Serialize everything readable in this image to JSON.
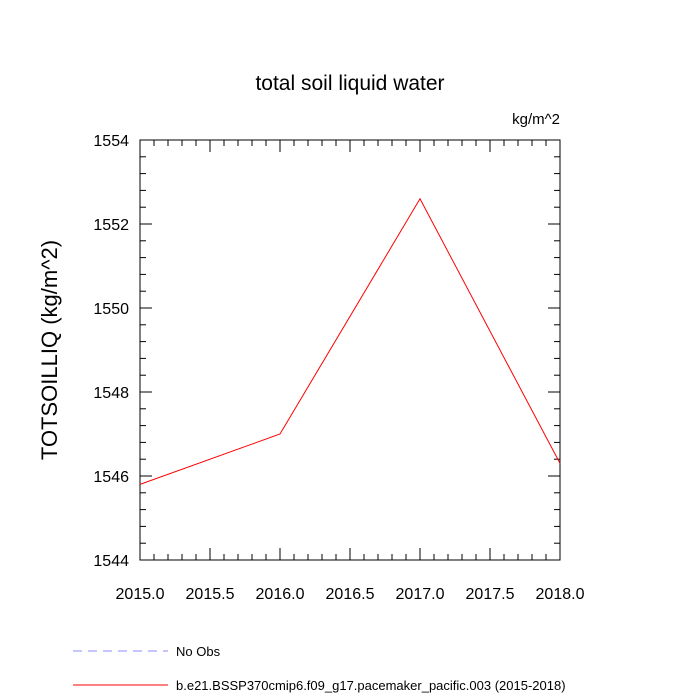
{
  "chart_data": {
    "type": "line",
    "title": "total soil liquid water",
    "units_label": "kg/m^2",
    "xlabel": "",
    "ylabel": "TOTSOILLIQ  (kg/m^2)",
    "xlim": [
      2015.0,
      2018.0
    ],
    "ylim": [
      1544,
      1554
    ],
    "x_ticks": [
      2015.0,
      2015.5,
      2016.0,
      2016.5,
      2017.0,
      2017.5,
      2018.0
    ],
    "x_tick_labels": [
      "2015.0",
      "2015.5",
      "2016.0",
      "2016.5",
      "2017.0",
      "2017.5",
      "2018.0"
    ],
    "y_ticks": [
      1544,
      1546,
      1548,
      1550,
      1552,
      1554
    ],
    "y_tick_labels": [
      "1544",
      "1546",
      "1548",
      "1550",
      "1552",
      "1554"
    ],
    "grid": false,
    "legend_position": "bottom-left",
    "series": [
      {
        "name": "No Obs",
        "color": "#8c8cff",
        "style": "dashed",
        "x": [],
        "values": []
      },
      {
        "name": "b.e21.BSSP370cmip6.f09_g17.pacemaker_pacific.003 (2015-2018)",
        "color": "#ff0000",
        "style": "solid",
        "x": [
          2015,
          2016,
          2017,
          2018
        ],
        "values": [
          1545.8,
          1547.0,
          1552.6,
          1546.3
        ]
      }
    ]
  }
}
